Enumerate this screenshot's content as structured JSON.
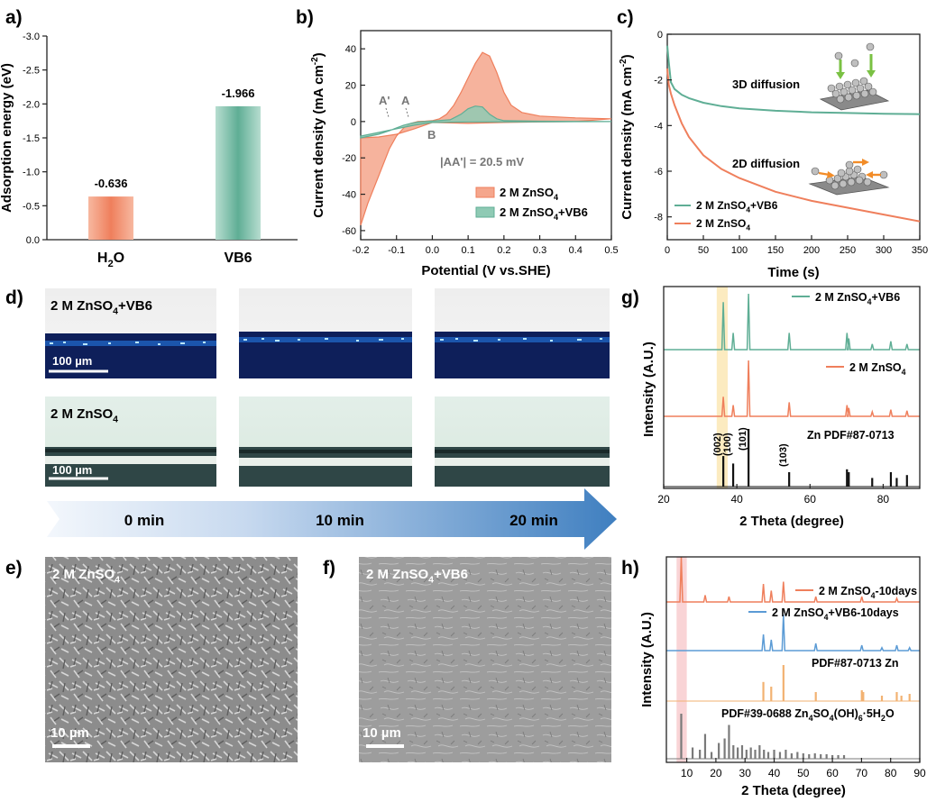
{
  "colors": {
    "orange": "#ef7f5c",
    "orange_fill": "#f5a68c",
    "green": "#5fae95",
    "green_fill": "#8fcab4",
    "blue": "#5b9bd5",
    "arrow": "#3f7fc0",
    "gray": "#7a7a7a",
    "yellow_band": "#fbe6b0",
    "pink_band": "#f7c9cc"
  },
  "chart_data": [
    {
      "panel": "a)",
      "type": "bar",
      "title": "",
      "xlabel": "",
      "ylabel": "Adsorption energy (eV)",
      "categories": [
        "H2O",
        "VB6"
      ],
      "category_labels": [
        {
          "main": "H",
          "sub": "2",
          "tail": "O"
        },
        {
          "main": "VB6",
          "sub": "",
          "tail": ""
        }
      ],
      "values": [
        -0.636,
        -1.966
      ],
      "value_labels": [
        "-0.636",
        "-1.966"
      ],
      "ylim": [
        0.0,
        -3.0
      ],
      "yticks": [
        "0.0",
        "-0.5",
        "-1.0",
        "-1.5",
        "-2.0",
        "-2.5",
        "-3.0"
      ],
      "ytick_values": [
        0.0,
        -0.5,
        -1.0,
        -1.5,
        -2.0,
        -2.5,
        -3.0
      ]
    },
    {
      "panel": "b)",
      "type": "line",
      "xlabel": "Potential (V vs.SHE)",
      "ylabel_parts": [
        "Current density (mA cm",
        "-2",
        ")"
      ],
      "xlim": [
        -0.2,
        0.5
      ],
      "ylim": [
        -65,
        50
      ],
      "xticks": [
        -0.2,
        -0.1,
        0.0,
        0.1,
        0.2,
        0.3,
        0.4,
        0.5
      ],
      "xtick_labels": [
        "-0.2",
        "-0.1",
        "0.0",
        "0.1",
        "0.2",
        "0.3",
        "0.4",
        "0.5"
      ],
      "yticks": [
        -60,
        -40,
        -20,
        0,
        20,
        40
      ],
      "ytick_labels": [
        "-60",
        "-40",
        "-20",
        "0",
        "20",
        "40"
      ],
      "annotations": [
        "A'",
        "A",
        "B",
        "|AA'| = 20.5 mV"
      ],
      "legend": [
        {
          "text": "2 M ZnSO",
          "sub": "4",
          "tail": ""
        },
        {
          "text": "2 M ZnSO",
          "sub": "4",
          "tail": "+VB6"
        }
      ],
      "series": [
        {
          "name": "2 M ZnSO4",
          "x": [
            -0.2,
            -0.18,
            -0.15,
            -0.12,
            -0.1,
            -0.08,
            -0.06,
            -0.04,
            -0.02,
            0.0,
            0.02,
            0.04,
            0.06,
            0.08,
            0.1,
            0.12,
            0.14,
            0.16,
            0.18,
            0.2,
            0.22,
            0.25,
            0.3,
            0.4,
            0.5,
            0.4,
            0.3,
            0.2,
            0.1,
            0.0,
            -0.05,
            -0.1,
            -0.15,
            -0.2
          ],
          "y": [
            -57,
            -45,
            -30,
            -15,
            -8,
            -3.5,
            -1,
            0,
            0.2,
            0.5,
            1.5,
            4,
            9,
            16,
            24,
            32,
            38,
            36,
            27,
            16,
            9,
            5,
            3,
            2,
            1.5,
            0,
            -0.2,
            -0.5,
            -1,
            -0.5,
            -4,
            -7,
            -8.5,
            -9
          ]
        },
        {
          "name": "2 M ZnSO4+VB6",
          "x": [
            -0.2,
            -0.15,
            -0.12,
            -0.1,
            -0.08,
            -0.06,
            -0.04,
            -0.02,
            0.0,
            0.05,
            0.08,
            0.1,
            0.12,
            0.14,
            0.16,
            0.18,
            0.2,
            0.3,
            0.5,
            0.3,
            0.1,
            0.0,
            -0.05,
            -0.1,
            -0.15,
            -0.2
          ],
          "y": [
            -9,
            -7,
            -5,
            -3.5,
            -2,
            -1,
            -0.3,
            0,
            0.3,
            1,
            4,
            7,
            8.5,
            8,
            4,
            1.5,
            0.5,
            0.2,
            0,
            -0.1,
            -0.2,
            -0.5,
            -2,
            -4,
            -6,
            -8
          ]
        }
      ]
    },
    {
      "panel": "c)",
      "type": "line",
      "xlabel": "Time (s)",
      "ylabel_parts": [
        "Current density (mA cm",
        "-2",
        ")"
      ],
      "xlim": [
        0,
        350
      ],
      "ylim": [
        -9,
        0
      ],
      "xticks": [
        0,
        50,
        100,
        150,
        200,
        250,
        300,
        350
      ],
      "xtick_labels": [
        "0",
        "50",
        "100",
        "150",
        "200",
        "250",
        "300",
        "350"
      ],
      "yticks": [
        0,
        -2,
        -4,
        -6,
        -8
      ],
      "ytick_labels": [
        "0",
        "-2",
        "-4",
        "-6",
        "-8"
      ],
      "annotations": [
        "3D diffusion",
        "2D diffusion"
      ],
      "legend": [
        {
          "text": "2 M ZnSO",
          "sub": "4",
          "tail": "+VB6"
        },
        {
          "text": "2 M ZnSO",
          "sub": "4",
          "tail": ""
        }
      ],
      "series": [
        {
          "name": "2 M ZnSO4+VB6",
          "x": [
            0,
            2,
            5,
            10,
            20,
            30,
            50,
            75,
            100,
            150,
            200,
            250,
            300,
            350
          ],
          "y": [
            -0.5,
            -1.2,
            -2.1,
            -2.4,
            -2.65,
            -2.8,
            -3.0,
            -3.15,
            -3.25,
            -3.35,
            -3.42,
            -3.45,
            -3.48,
            -3.5
          ]
        },
        {
          "name": "2 M ZnSO4",
          "x": [
            0,
            2,
            5,
            10,
            20,
            30,
            50,
            75,
            100,
            150,
            200,
            250,
            300,
            350
          ],
          "y": [
            -1.5,
            -2.2,
            -2.6,
            -3.1,
            -3.9,
            -4.5,
            -5.3,
            -5.9,
            -6.3,
            -6.9,
            -7.3,
            -7.6,
            -7.9,
            -8.2
          ]
        }
      ]
    },
    {
      "panel": "g)",
      "type": "line",
      "xlabel": "2 Theta (degree)",
      "ylabel": "Intensity (A.U.)",
      "xlim": [
        20,
        90
      ],
      "xticks": [
        20,
        40,
        60,
        80
      ],
      "xtick_labels": [
        "20",
        "40",
        "60",
        "80"
      ],
      "highlight_range": [
        34.5,
        37.5
      ],
      "series": [
        {
          "name": "2 M ZnSO4+VB6",
          "label": {
            "text": "2 M ZnSO",
            "sub": "4",
            "tail": "+VB6"
          },
          "peaks": [
            36.3,
            39.0,
            43.2,
            54.3,
            70.1,
            70.6,
            77.0,
            82.1,
            86.5
          ],
          "heights": [
            0.85,
            0.3,
            1.0,
            0.3,
            0.3,
            0.2,
            0.1,
            0.15,
            0.1
          ]
        },
        {
          "name": "2 M ZnSO4",
          "label": {
            "text": "2 M ZnSO",
            "sub": "4",
            "tail": ""
          },
          "peaks": [
            36.3,
            39.0,
            43.2,
            54.3,
            70.1,
            70.6,
            77.0,
            82.1,
            86.5
          ],
          "heights": [
            0.35,
            0.2,
            1.0,
            0.25,
            0.2,
            0.15,
            0.08,
            0.12,
            0.1
          ]
        },
        {
          "name": "Zn PDF#87-0713",
          "label": {
            "text": "Zn PDF#87-0713",
            "sub": "",
            "tail": ""
          },
          "peaks": [
            36.3,
            39.0,
            43.2,
            54.3,
            70.1,
            70.6,
            77.0,
            82.1,
            83.7,
            86.5
          ],
          "heights": [
            0.53,
            0.4,
            1.0,
            0.25,
            0.3,
            0.25,
            0.15,
            0.25,
            0.15,
            0.2
          ]
        }
      ],
      "peak_labels": [
        {
          "text": "(002)",
          "x": 36.3
        },
        {
          "text": "(100)",
          "x": 39.0
        },
        {
          "text": "(101)",
          "x": 43.2
        },
        {
          "text": "(103)",
          "x": 54.3
        }
      ]
    },
    {
      "panel": "h)",
      "type": "line",
      "xlabel": "2 Theta (degree)",
      "ylabel": "Intensity (A.U.)",
      "xlim": [
        3,
        90
      ],
      "xticks": [
        10,
        20,
        30,
        40,
        50,
        60,
        70,
        80,
        90
      ],
      "xtick_labels": [
        "10",
        "20",
        "30",
        "40",
        "50",
        "60",
        "70",
        "80",
        "90"
      ],
      "highlight_range": [
        6.5,
        10.0
      ],
      "series": [
        {
          "name": "2 M ZnSO4-10days",
          "label": {
            "text": "2 M ZnSO",
            "sub": "4",
            "tail": "-10days"
          },
          "peaks": [
            8.1,
            16.3,
            24.5,
            36.3,
            39.0,
            43.2,
            54.3,
            70.1,
            82.1
          ],
          "heights": [
            1.0,
            0.15,
            0.12,
            0.4,
            0.25,
            0.45,
            0.12,
            0.12,
            0.08
          ]
        },
        {
          "name": "2 M ZnSO4+VB6-10days",
          "label": {
            "text": "2 M ZnSO",
            "sub": "4",
            "tail": "+VB6-10days"
          },
          "peaks": [
            36.3,
            39.0,
            43.2,
            54.3,
            70.1,
            77.0,
            82.1,
            86.5
          ],
          "heights": [
            0.45,
            0.3,
            1.0,
            0.2,
            0.15,
            0.08,
            0.15,
            0.08
          ]
        },
        {
          "name": "PDF#87-0713 Zn",
          "label": {
            "text": "PDF#87-0713 Zn",
            "sub": "",
            "tail": ""
          },
          "peaks": [
            36.3,
            39.0,
            43.2,
            54.3,
            70.1,
            70.6,
            77.0,
            82.1,
            83.7,
            86.5
          ],
          "heights": [
            0.53,
            0.4,
            1.0,
            0.25,
            0.3,
            0.25,
            0.15,
            0.25,
            0.15,
            0.2
          ]
        },
        {
          "name": "PDF#39-0688 Zn4SO4(OH)6·5H2O",
          "label_parts": [
            "PDF#39-0688 Zn",
            "4",
            "SO",
            "4",
            "(OH)",
            "6",
            "·5H",
            "2",
            "O"
          ],
          "peaks": [
            8.1,
            12.0,
            14.5,
            16.3,
            18.5,
            21.0,
            23.0,
            24.5,
            26.0,
            27.5,
            29.0,
            30.5,
            32.0,
            33.5,
            35.0,
            36.5,
            38.0,
            40.0,
            42.0,
            44.0,
            46.0,
            48.0,
            50.0,
            52.0,
            54.0,
            56.0,
            58.0,
            60.0,
            62.0,
            64.0
          ],
          "heights": [
            1.0,
            0.25,
            0.2,
            0.55,
            0.15,
            0.35,
            0.45,
            0.75,
            0.3,
            0.25,
            0.3,
            0.2,
            0.25,
            0.2,
            0.3,
            0.2,
            0.15,
            0.2,
            0.15,
            0.2,
            0.12,
            0.15,
            0.12,
            0.1,
            0.12,
            0.1,
            0.1,
            0.08,
            0.08,
            0.08
          ]
        }
      ]
    }
  ],
  "panel_d": {
    "label": "d)",
    "rows": [
      {
        "name": "2 M ZnSO4+VB6",
        "label_text": "2 M ZnSO",
        "label_sub": "4",
        "label_tail": "+VB6",
        "scale": "100 µm"
      },
      {
        "name": "2 M ZnSO4",
        "label_text": "2 M ZnSO",
        "label_sub": "4",
        "label_tail": "",
        "scale": "100 µm"
      }
    ],
    "timeline": [
      "0 min",
      "10 min",
      "20 min"
    ]
  },
  "panel_e": {
    "label": "e)",
    "text": "2 M ZnSO",
    "sub": "4",
    "tail": "",
    "scale": "10 µm"
  },
  "panel_f": {
    "label": "f)",
    "text": "2 M ZnSO",
    "sub": "4",
    "tail": "+VB6",
    "scale": "10 µm"
  }
}
